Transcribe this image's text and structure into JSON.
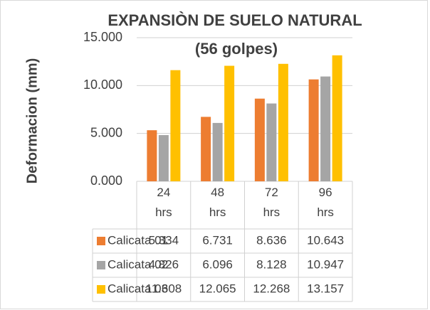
{
  "chart_data": {
    "type": "bar",
    "title": "EXPANSIÒN DE SUELO NATURAL",
    "subtitle": "(56 golpes)",
    "y_label": "Deformacion (mm)",
    "categories": [
      "24 hrs",
      "48 hrs",
      "72 hrs",
      "96 hrs"
    ],
    "series": [
      {
        "name": "Calicata 01",
        "color": "#ed7d31",
        "values": [
          5.334,
          6.731,
          8.636,
          10.643
        ]
      },
      {
        "name": "Calicata 02",
        "color": "#a5a5a5",
        "values": [
          4.826,
          6.096,
          8.128,
          10.947
        ]
      },
      {
        "name": "Calicata 03",
        "color": "#ffc000",
        "values": [
          11.608,
          12.065,
          12.268,
          13.157
        ]
      }
    ],
    "ylim": [
      0,
      15
    ],
    "yticks": [
      {
        "value": 0,
        "label": "0.000"
      },
      {
        "value": 5,
        "label": "5.000"
      },
      {
        "value": 10,
        "label": "10.000"
      },
      {
        "value": 15,
        "label": "15.000"
      }
    ],
    "grid": true,
    "data_table": true
  }
}
